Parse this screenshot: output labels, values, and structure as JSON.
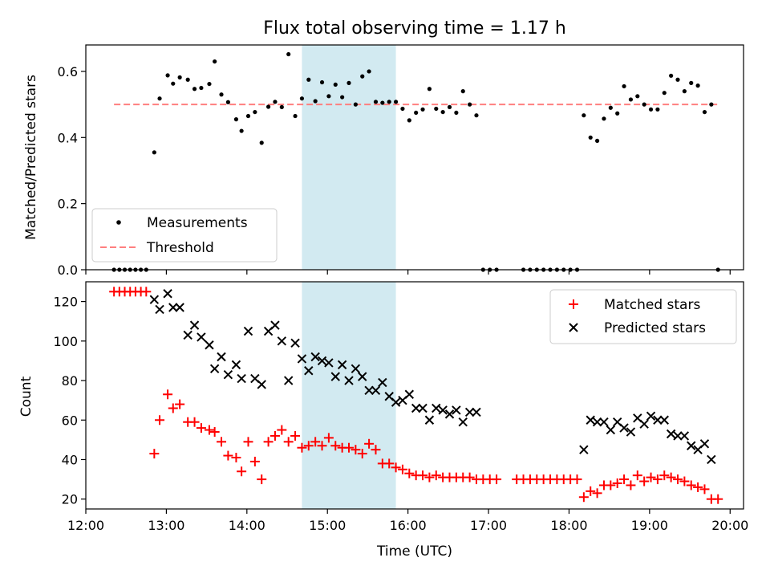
{
  "chart_data": [
    {
      "type": "scatter",
      "title": "Flux total observing time = 1.17 h",
      "xlabel": "",
      "ylabel": "Matched/Predicted stars",
      "xlim": [
        "12:00",
        "20:10"
      ],
      "ylim": [
        0,
        0.68
      ],
      "yticks": [
        "0.0",
        "0.2",
        "0.4",
        "0.6"
      ],
      "legend_placement": "lower-left",
      "highlight_band": {
        "start": "14:41",
        "end": "15:51",
        "color": "#add8e6"
      },
      "threshold": {
        "name": "Threshold",
        "value": 0.5,
        "start": "12:21",
        "end": "19:51",
        "color": "#ff7f7f"
      },
      "series": [
        {
          "name": "Measurements",
          "color": "#000000",
          "marker": "dot",
          "points": [
            [
              "12:21",
              0
            ],
            [
              "12:25",
              0
            ],
            [
              "12:29",
              0
            ],
            [
              "12:33",
              0
            ],
            [
              "12:37",
              0
            ],
            [
              "12:41",
              0
            ],
            [
              "12:45",
              0
            ],
            [
              "12:51",
              0.355
            ],
            [
              "12:55",
              0.518
            ],
            [
              "13:01",
              0.588
            ],
            [
              "13:05",
              0.563
            ],
            [
              "13:10",
              0.582
            ],
            [
              "13:16",
              0.575
            ],
            [
              "13:21",
              0.547
            ],
            [
              "13:26",
              0.55
            ],
            [
              "13:32",
              0.562
            ],
            [
              "13:36",
              0.63
            ],
            [
              "13:41",
              0.53
            ],
            [
              "13:46",
              0.507
            ],
            [
              "13:52",
              0.455
            ],
            [
              "13:56",
              0.42
            ],
            [
              "14:01",
              0.465
            ],
            [
              "14:06",
              0.477
            ],
            [
              "14:11",
              0.384
            ],
            [
              "14:16",
              0.493
            ],
            [
              "14:21",
              0.508
            ],
            [
              "14:26",
              0.492
            ],
            [
              "14:31",
              0.652
            ],
            [
              "14:36",
              0.465
            ],
            [
              "14:41",
              0.518
            ],
            [
              "14:46",
              0.575
            ],
            [
              "14:51",
              0.51
            ],
            [
              "14:56",
              0.567
            ],
            [
              "15:01",
              0.525
            ],
            [
              "15:06",
              0.56
            ],
            [
              "15:11",
              0.522
            ],
            [
              "15:16",
              0.565
            ],
            [
              "15:21",
              0.5
            ],
            [
              "15:26",
              0.585
            ],
            [
              "15:31",
              0.6
            ],
            [
              "15:36",
              0.508
            ],
            [
              "15:41",
              0.505
            ],
            [
              "15:46",
              0.508
            ],
            [
              "15:51",
              0.508
            ],
            [
              "15:56",
              0.487
            ],
            [
              "16:01",
              0.452
            ],
            [
              "16:06",
              0.475
            ],
            [
              "16:11",
              0.485
            ],
            [
              "16:16",
              0.547
            ],
            [
              "16:21",
              0.487
            ],
            [
              "16:26",
              0.477
            ],
            [
              "16:31",
              0.492
            ],
            [
              "16:36",
              0.475
            ],
            [
              "16:41",
              0.54
            ],
            [
              "16:46",
              0.5
            ],
            [
              "16:51",
              0.467
            ],
            [
              "16:56",
              0
            ],
            [
              "17:01",
              0
            ],
            [
              "17:06",
              0
            ],
            [
              "17:26",
              0
            ],
            [
              "17:31",
              0
            ],
            [
              "17:36",
              0
            ],
            [
              "17:41",
              0
            ],
            [
              "17:46",
              0
            ],
            [
              "17:51",
              0
            ],
            [
              "17:56",
              0
            ],
            [
              "18:01",
              0
            ],
            [
              "18:06",
              0
            ],
            [
              "18:11",
              0.467
            ],
            [
              "18:16",
              0.4
            ],
            [
              "18:21",
              0.39
            ],
            [
              "18:26",
              0.457
            ],
            [
              "18:31",
              0.49
            ],
            [
              "18:36",
              0.473
            ],
            [
              "18:41",
              0.555
            ],
            [
              "18:46",
              0.515
            ],
            [
              "18:51",
              0.525
            ],
            [
              "18:56",
              0.5
            ],
            [
              "19:01",
              0.485
            ],
            [
              "19:06",
              0.485
            ],
            [
              "19:11",
              0.535
            ],
            [
              "19:16",
              0.587
            ],
            [
              "19:21",
              0.575
            ],
            [
              "19:26",
              0.54
            ],
            [
              "19:31",
              0.565
            ],
            [
              "19:36",
              0.557
            ],
            [
              "19:41",
              0.477
            ],
            [
              "19:46",
              0.5
            ],
            [
              "19:51",
              0
            ]
          ]
        }
      ]
    },
    {
      "type": "scatter",
      "title": "",
      "xlabel": "Time (UTC)",
      "ylabel": "Count",
      "xlim": [
        "12:00",
        "20:10"
      ],
      "ylim": [
        15,
        130
      ],
      "yticks": [
        "20",
        "40",
        "60",
        "80",
        "100",
        "120"
      ],
      "xticks": [
        "12:00",
        "13:00",
        "14:00",
        "15:00",
        "16:00",
        "17:00",
        "18:00",
        "19:00",
        "20:00"
      ],
      "legend_placement": "upper-right",
      "highlight_band": {
        "start": "14:41",
        "end": "15:51",
        "color": "#add8e6"
      },
      "series": [
        {
          "name": "Matched stars",
          "color": "#ff0000",
          "marker": "plus",
          "points": [
            [
              "12:21",
              125
            ],
            [
              "12:25",
              125
            ],
            [
              "12:29",
              125
            ],
            [
              "12:33",
              125
            ],
            [
              "12:37",
              125
            ],
            [
              "12:41",
              125
            ],
            [
              "12:45",
              125
            ],
            [
              "12:51",
              43
            ],
            [
              "12:55",
              60
            ],
            [
              "13:01",
              73
            ],
            [
              "13:05",
              66
            ],
            [
              "13:10",
              68
            ],
            [
              "13:16",
              59
            ],
            [
              "13:21",
              59
            ],
            [
              "13:26",
              56
            ],
            [
              "13:32",
              55
            ],
            [
              "13:36",
              54
            ],
            [
              "13:41",
              49
            ],
            [
              "13:46",
              42
            ],
            [
              "13:52",
              41
            ],
            [
              "13:56",
              34
            ],
            [
              "14:01",
              49
            ],
            [
              "14:06",
              39
            ],
            [
              "14:11",
              30
            ],
            [
              "14:16",
              49
            ],
            [
              "14:21",
              52
            ],
            [
              "14:26",
              55
            ],
            [
              "14:31",
              49
            ],
            [
              "14:36",
              52
            ],
            [
              "14:41",
              46
            ],
            [
              "14:46",
              47
            ],
            [
              "14:51",
              49
            ],
            [
              "14:56",
              47
            ],
            [
              "15:01",
              51
            ],
            [
              "15:06",
              47
            ],
            [
              "15:11",
              46
            ],
            [
              "15:16",
              46
            ],
            [
              "15:21",
              45
            ],
            [
              "15:26",
              43
            ],
            [
              "15:31",
              48
            ],
            [
              "15:36",
              45
            ],
            [
              "15:41",
              38
            ],
            [
              "15:46",
              38
            ],
            [
              "15:51",
              36
            ],
            [
              "15:56",
              35
            ],
            [
              "16:01",
              33
            ],
            [
              "16:06",
              32
            ],
            [
              "16:11",
              32
            ],
            [
              "16:16",
              31
            ],
            [
              "16:21",
              32
            ],
            [
              "16:26",
              31
            ],
            [
              "16:31",
              31
            ],
            [
              "16:36",
              31
            ],
            [
              "16:41",
              31
            ],
            [
              "16:46",
              31
            ],
            [
              "16:51",
              30
            ],
            [
              "16:56",
              30
            ],
            [
              "17:01",
              30
            ],
            [
              "17:06",
              30
            ],
            [
              "17:21",
              30
            ],
            [
              "17:26",
              30
            ],
            [
              "17:31",
              30
            ],
            [
              "17:36",
              30
            ],
            [
              "17:41",
              30
            ],
            [
              "17:46",
              30
            ],
            [
              "17:51",
              30
            ],
            [
              "17:56",
              30
            ],
            [
              "18:01",
              30
            ],
            [
              "18:06",
              30
            ],
            [
              "18:11",
              21
            ],
            [
              "18:16",
              24
            ],
            [
              "18:21",
              23
            ],
            [
              "18:26",
              27
            ],
            [
              "18:31",
              27
            ],
            [
              "18:36",
              28
            ],
            [
              "18:41",
              30
            ],
            [
              "18:46",
              27
            ],
            [
              "18:51",
              32
            ],
            [
              "18:56",
              29
            ],
            [
              "19:01",
              31
            ],
            [
              "19:06",
              30
            ],
            [
              "19:11",
              32
            ],
            [
              "19:16",
              31
            ],
            [
              "19:21",
              30
            ],
            [
              "19:26",
              29
            ],
            [
              "19:31",
              27
            ],
            [
              "19:36",
              26
            ],
            [
              "19:41",
              25
            ],
            [
              "19:46",
              20
            ],
            [
              "19:51",
              20
            ]
          ]
        },
        {
          "name": "Predicted stars",
          "color": "#000000",
          "marker": "x",
          "points": [
            [
              "12:51",
              121
            ],
            [
              "12:55",
              116
            ],
            [
              "13:01",
              124
            ],
            [
              "13:05",
              117
            ],
            [
              "13:10",
              117
            ],
            [
              "13:16",
              103
            ],
            [
              "13:21",
              108
            ],
            [
              "13:26",
              102
            ],
            [
              "13:32",
              98
            ],
            [
              "13:36",
              86
            ],
            [
              "13:41",
              92
            ],
            [
              "13:46",
              83
            ],
            [
              "13:52",
              88
            ],
            [
              "13:56",
              81
            ],
            [
              "14:01",
              105
            ],
            [
              "14:06",
              81
            ],
            [
              "14:11",
              78
            ],
            [
              "14:16",
              105
            ],
            [
              "14:21",
              108
            ],
            [
              "14:26",
              100
            ],
            [
              "14:31",
              80
            ],
            [
              "14:36",
              99
            ],
            [
              "14:41",
              91
            ],
            [
              "14:46",
              85
            ],
            [
              "14:51",
              92
            ],
            [
              "14:56",
              90
            ],
            [
              "15:01",
              89
            ],
            [
              "15:06",
              82
            ],
            [
              "15:11",
              88
            ],
            [
              "15:16",
              80
            ],
            [
              "15:21",
              86
            ],
            [
              "15:26",
              82
            ],
            [
              "15:31",
              75
            ],
            [
              "15:36",
              75
            ],
            [
              "15:41",
              79
            ],
            [
              "15:46",
              72
            ],
            [
              "15:51",
              69
            ],
            [
              "15:56",
              70
            ],
            [
              "16:01",
              73
            ],
            [
              "16:06",
              66
            ],
            [
              "16:11",
              66
            ],
            [
              "16:16",
              60
            ],
            [
              "16:21",
              66
            ],
            [
              "16:26",
              65
            ],
            [
              "16:31",
              63
            ],
            [
              "16:36",
              65
            ],
            [
              "16:41",
              59
            ],
            [
              "16:46",
              64
            ],
            [
              "16:51",
              64
            ],
            [
              "18:11",
              45
            ],
            [
              "18:16",
              60
            ],
            [
              "18:21",
              59
            ],
            [
              "18:26",
              59
            ],
            [
              "18:31",
              55
            ],
            [
              "18:36",
              59
            ],
            [
              "18:41",
              56
            ],
            [
              "18:46",
              54
            ],
            [
              "18:51",
              61
            ],
            [
              "18:56",
              58
            ],
            [
              "19:01",
              62
            ],
            [
              "19:06",
              60
            ],
            [
              "19:11",
              60
            ],
            [
              "19:16",
              53
            ],
            [
              "19:21",
              52
            ],
            [
              "19:26",
              52
            ],
            [
              "19:31",
              47
            ],
            [
              "19:36",
              45
            ],
            [
              "19:41",
              48
            ],
            [
              "19:46",
              40
            ]
          ]
        }
      ]
    }
  ]
}
